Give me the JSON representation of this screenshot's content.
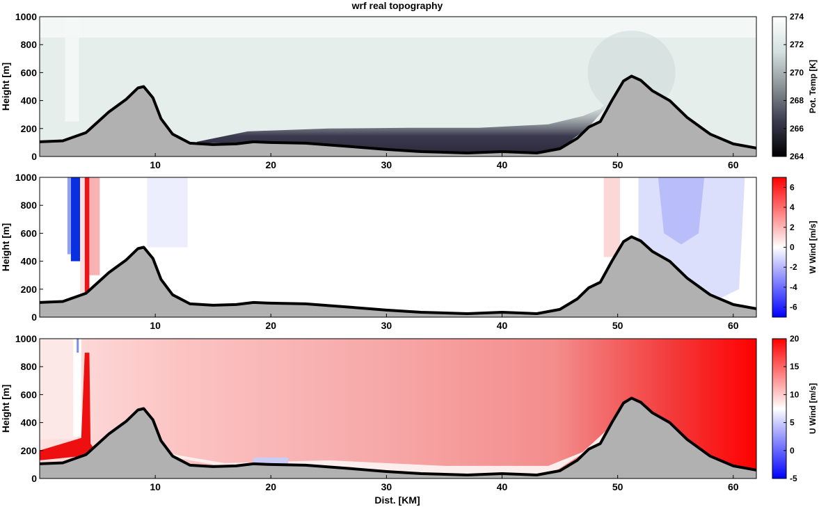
{
  "figure": {
    "title": "wrf real topography",
    "xlabel": "Dist. [KM]"
  },
  "chart_data": [
    {
      "type": "heatmap",
      "variable": "potential temperature",
      "ylabel": "Height [m]",
      "xlim": [
        0,
        62
      ],
      "ylim": [
        0,
        1000
      ],
      "xticks": [
        10,
        20,
        30,
        40,
        50,
        60
      ],
      "yticks": [
        0,
        200,
        400,
        600,
        800,
        1000
      ],
      "colorbar": {
        "label": "Pot. Temp [K]",
        "range": [
          264,
          274
        ],
        "ticks": [
          264,
          266,
          268,
          270,
          272,
          274
        ],
        "colormap": [
          "#000000",
          "#3a3a4e",
          "#8c9397",
          "#d3e1df",
          "#ffffff"
        ]
      },
      "grid": false
    },
    {
      "type": "heatmap",
      "variable": "vertical wind",
      "ylabel": "Height [m]",
      "xlim": [
        0,
        62
      ],
      "ylim": [
        0,
        1000
      ],
      "xticks": [
        10,
        20,
        30,
        40,
        50,
        60
      ],
      "yticks": [
        0,
        200,
        400,
        600,
        800,
        1000
      ],
      "colorbar": {
        "label": "W Wind [m/s]",
        "range": [
          -7,
          7
        ],
        "ticks": [
          6,
          4,
          2,
          0,
          -2,
          -4,
          -6
        ],
        "colormap": [
          "#0000ff",
          "#ffffff",
          "#ff0000"
        ]
      },
      "grid": false
    },
    {
      "type": "heatmap",
      "variable": "horizontal wind",
      "ylabel": "Height [m]",
      "xlim": [
        0,
        62
      ],
      "ylim": [
        0,
        1000
      ],
      "xticks": [
        10,
        20,
        30,
        40,
        50,
        60
      ],
      "yticks": [
        0,
        200,
        400,
        600,
        800,
        1000
      ],
      "colorbar": {
        "label": "U Wind [m/s]",
        "range": [
          -5,
          20
        ],
        "ticks": [
          20,
          15,
          10,
          5,
          0,
          -5
        ],
        "colormap": [
          "#0000ff",
          "#ffffff",
          "#ff0000"
        ]
      },
      "grid": false
    }
  ],
  "terrain": {
    "x": [
      0,
      2,
      4,
      6,
      7.5,
      8.5,
      9,
      9.8,
      10.5,
      11.5,
      13,
      15,
      17,
      18.5,
      20,
      23,
      27,
      30,
      33,
      37,
      40,
      43,
      45,
      46.5,
      47.5,
      48.5,
      49.5,
      50.5,
      51.2,
      52,
      53,
      54.5,
      56,
      58,
      60,
      62
    ],
    "height": [
      105,
      112,
      170,
      320,
      410,
      490,
      500,
      420,
      270,
      160,
      95,
      85,
      90,
      105,
      100,
      95,
      70,
      50,
      35,
      25,
      35,
      25,
      55,
      130,
      210,
      250,
      400,
      540,
      575,
      545,
      470,
      400,
      280,
      160,
      90,
      60
    ],
    "fill_color": "#b1b1b1",
    "line_color": "#000000"
  }
}
